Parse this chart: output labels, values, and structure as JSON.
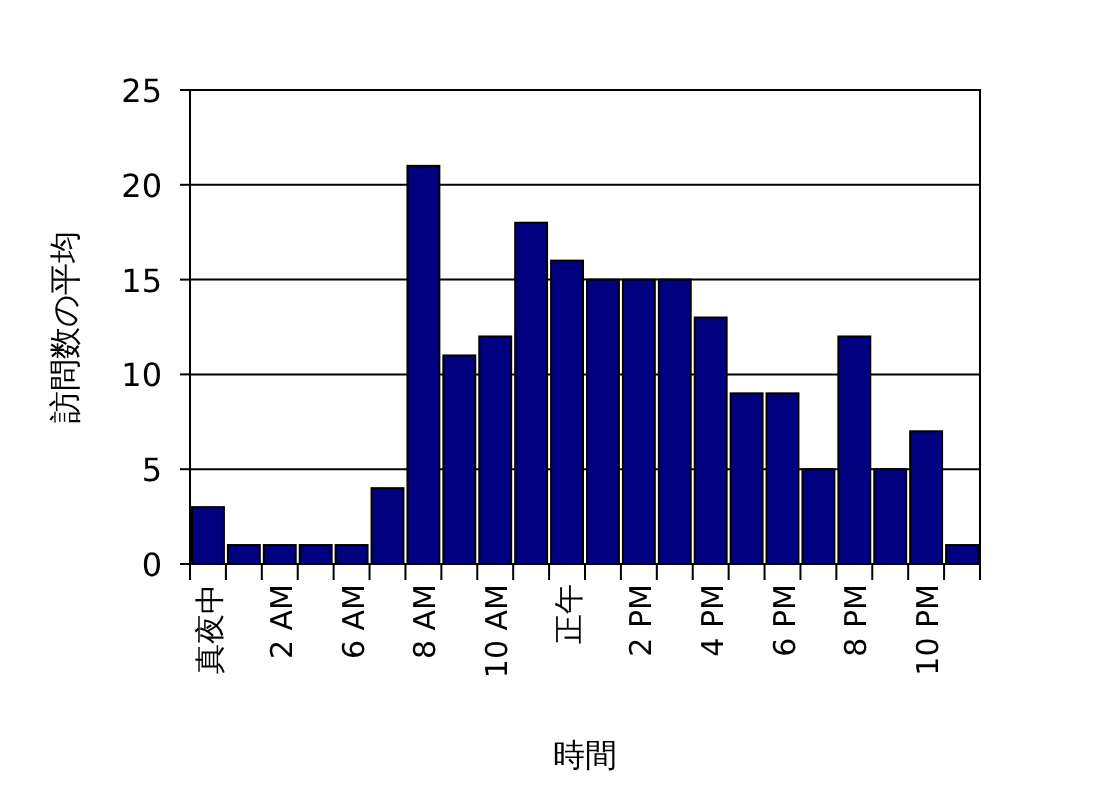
{
  "chart_data": {
    "type": "bar",
    "xlabel": "時間",
    "ylabel": "訪問数の平均",
    "categories": [
      "真夜中",
      null,
      "2 AM",
      null,
      "6 AM",
      null,
      "8 AM",
      null,
      "10 AM",
      null,
      "正午",
      null,
      "2 PM",
      null,
      "4 PM",
      null,
      "6 PM",
      null,
      "8 PM",
      null,
      "10 PM",
      null
    ],
    "values": [
      3,
      1,
      1,
      1,
      1,
      4,
      21,
      11,
      12,
      18,
      16,
      15,
      15,
      15,
      13,
      9,
      9,
      5,
      12,
      5,
      7,
      1
    ],
    "color": "#000080",
    "ylim": [
      0,
      25
    ],
    "yticks": [
      0,
      5,
      10,
      15,
      20,
      25
    ],
    "grid": "y"
  }
}
